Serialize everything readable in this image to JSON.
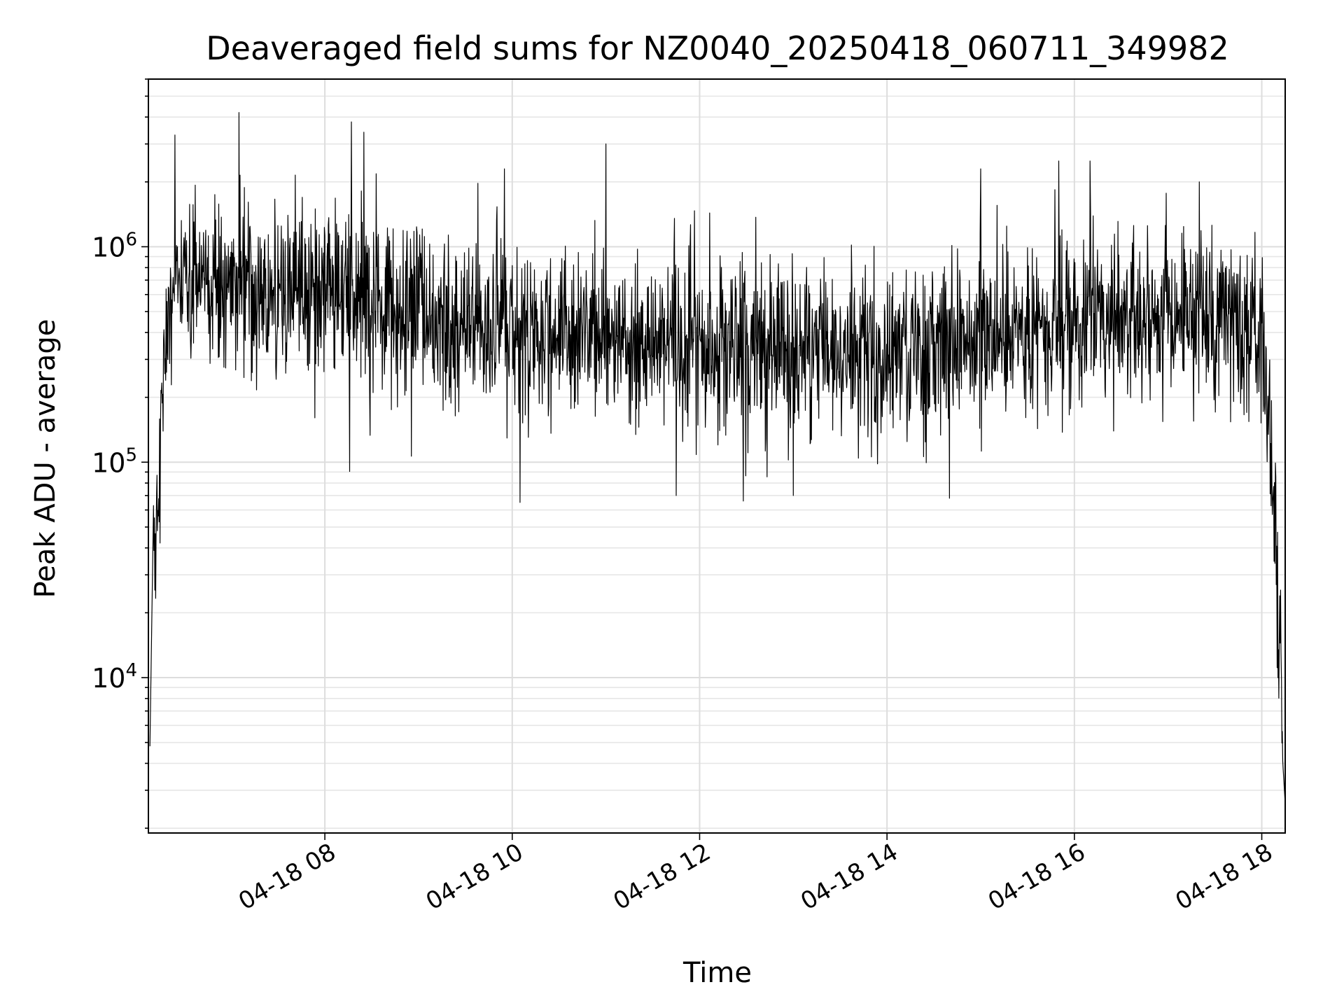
{
  "chart_data": {
    "type": "line",
    "title": "Deaveraged field sums for NZ0040_20250418_060711_349982",
    "xlabel": "Time",
    "ylabel": "Peak ADU - average",
    "x_range": [
      "2025-04-18 06:07",
      "2025-04-18 18:15"
    ],
    "y_range": [
      1900,
      6000000
    ],
    "y_scale": "log",
    "grid": true,
    "x_ticks": [
      {
        "time": "2025-04-18 08:00",
        "label": "04-18 08"
      },
      {
        "time": "2025-04-18 10:00",
        "label": "04-18 10"
      },
      {
        "time": "2025-04-18 12:00",
        "label": "04-18 12"
      },
      {
        "time": "2025-04-18 14:00",
        "label": "04-18 14"
      },
      {
        "time": "2025-04-18 16:00",
        "label": "04-18 16"
      },
      {
        "time": "2025-04-18 18:00",
        "label": "04-18 18"
      }
    ],
    "y_ticks": [
      {
        "value": 10000,
        "base": "10",
        "exp": "4"
      },
      {
        "value": 100000,
        "base": "10",
        "exp": "5"
      },
      {
        "value": 1000000,
        "base": "10",
        "exp": "6"
      }
    ],
    "series": [
      {
        "color": "#000000",
        "typical_level": [
          {
            "time": "2025-04-18 06:10",
            "value": 30000
          },
          {
            "time": "2025-04-18 06:20",
            "value": 600000
          },
          {
            "time": "2025-04-18 07:00",
            "value": 650000
          },
          {
            "time": "2025-04-18 08:00",
            "value": 620000
          },
          {
            "time": "2025-04-18 09:00",
            "value": 450000
          },
          {
            "time": "2025-04-18 10:00",
            "value": 420000
          },
          {
            "time": "2025-04-18 11:00",
            "value": 380000
          },
          {
            "time": "2025-04-18 12:00",
            "value": 340000
          },
          {
            "time": "2025-04-18 13:00",
            "value": 320000
          },
          {
            "time": "2025-04-18 14:00",
            "value": 330000
          },
          {
            "time": "2025-04-18 15:00",
            "value": 420000
          },
          {
            "time": "2025-04-18 16:00",
            "value": 450000
          },
          {
            "time": "2025-04-18 17:00",
            "value": 480000
          },
          {
            "time": "2025-04-18 18:00",
            "value": 450000
          },
          {
            "time": "2025-04-18 18:08",
            "value": 60000
          },
          {
            "time": "2025-04-18 18:14",
            "value": 4000
          }
        ],
        "peaks": [
          {
            "time": "2025-04-18 06:24",
            "value": 3300000
          },
          {
            "time": "2025-04-18 07:05",
            "value": 4200000
          },
          {
            "time": "2025-04-18 08:17",
            "value": 3800000
          },
          {
            "time": "2025-04-18 08:25",
            "value": 3400000
          },
          {
            "time": "2025-04-18 09:55",
            "value": 2300000
          },
          {
            "time": "2025-04-18 11:00",
            "value": 3000000
          },
          {
            "time": "2025-04-18 15:00",
            "value": 2300000
          },
          {
            "time": "2025-04-18 15:50",
            "value": 2500000
          },
          {
            "time": "2025-04-18 16:10",
            "value": 2500000
          },
          {
            "time": "2025-04-18 17:20",
            "value": 2000000
          }
        ],
        "troughs": [
          {
            "time": "2025-04-18 06:08",
            "value": 4800
          },
          {
            "time": "2025-04-18 10:05",
            "value": 65000
          },
          {
            "time": "2025-04-18 11:45",
            "value": 70000
          },
          {
            "time": "2025-04-18 12:28",
            "value": 66000
          },
          {
            "time": "2025-04-18 13:00",
            "value": 70000
          },
          {
            "time": "2025-04-18 14:40",
            "value": 68000
          },
          {
            "time": "2025-04-18 18:15",
            "value": 2600
          }
        ]
      }
    ]
  }
}
